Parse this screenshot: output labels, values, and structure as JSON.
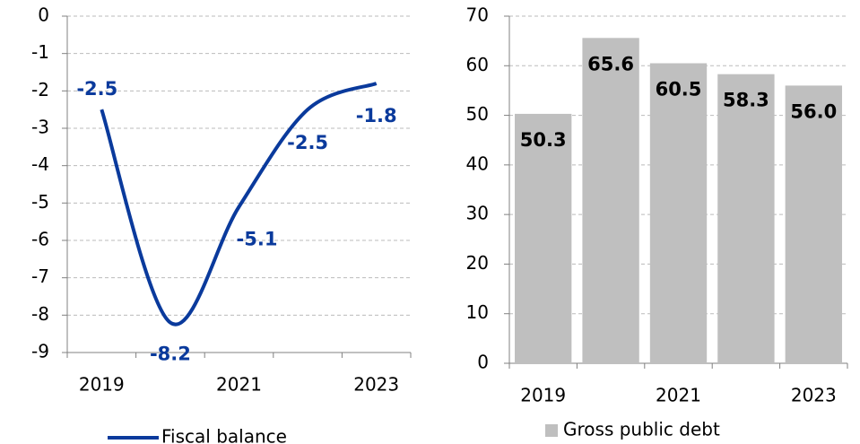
{
  "chart_data": [
    {
      "type": "line",
      "categories": [
        "2019",
        null,
        "2021",
        null,
        "2023"
      ],
      "series": [
        {
          "name": "Fiscal balance",
          "color": "#0a3a9c",
          "values": [
            -2.5,
            -8.2,
            -5.1,
            -2.5,
            -1.8
          ]
        }
      ],
      "ylim": [
        -9,
        0
      ],
      "yticks": [
        0,
        -1,
        -2,
        -3,
        -4,
        -5,
        -6,
        -7,
        -8,
        -9
      ],
      "grid": true,
      "legend": "bottom"
    },
    {
      "type": "bar",
      "categories": [
        "2019",
        null,
        "2021",
        null,
        "2023"
      ],
      "series": [
        {
          "name": "Gross public debt",
          "color": "#bfbfbf",
          "values": [
            50.3,
            65.6,
            60.5,
            58.3,
            56.0
          ],
          "value_labels": [
            "50.3",
            "65.6",
            "60.5",
            "58.3",
            "56.0"
          ]
        }
      ],
      "ylim": [
        0,
        70
      ],
      "yticks": [
        0,
        10,
        20,
        30,
        40,
        50,
        60,
        70
      ],
      "grid": true,
      "legend": "bottom"
    }
  ]
}
